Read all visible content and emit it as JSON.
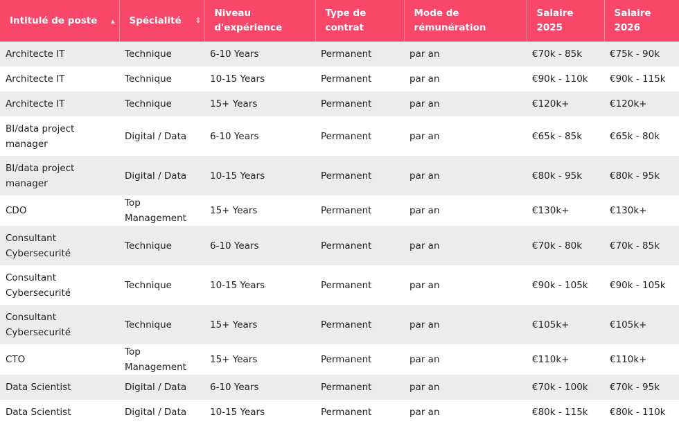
{
  "table": {
    "columns": [
      "Intitulé de poste",
      "Spécialité",
      "Niveau d'expérience",
      "Type de contrat",
      "Mode de rémunération",
      "Salaire 2025",
      "Salaire 2026"
    ],
    "rows": [
      [
        "Architecte IT",
        "Technique",
        "6-10 Years",
        "Permanent",
        "par an",
        "€70k - 85k",
        "€75k - 90k"
      ],
      [
        "Architecte IT",
        "Technique",
        "10-15 Years",
        "Permanent",
        "par an",
        "€90k - 110k",
        "€90k - 115k"
      ],
      [
        "Architecte IT",
        "Technique",
        "15+ Years",
        "Permanent",
        "par an",
        "€120k+",
        "€120k+"
      ],
      [
        "BI/data project manager",
        "Digital / Data",
        "6-10 Years",
        "Permanent",
        "par an",
        "€65k - 85k",
        "€65k - 80k"
      ],
      [
        "BI/data project manager",
        "Digital / Data",
        "10-15 Years",
        "Permanent",
        "par an",
        "€80k - 95k",
        "€80k - 95k"
      ],
      [
        "CDO",
        "Top Management",
        "15+ Years",
        "Permanent",
        "par an",
        "€130k+",
        "€130k+"
      ],
      [
        "Consultant Cybersecurité",
        "Technique",
        "6-10 Years",
        "Permanent",
        "par an",
        "€70k - 80k",
        "€70k - 85k"
      ],
      [
        "Consultant Cybersecurité",
        "Technique",
        "10-15 Years",
        "Permanent",
        "par an",
        "€90k - 105k",
        "€90k - 105k"
      ],
      [
        "Consultant Cybersecurité",
        "Technique",
        "15+ Years",
        "Permanent",
        "par an",
        "€105k+",
        "€105k+"
      ],
      [
        "CTO",
        "Top Management",
        "15+ Years",
        "Permanent",
        "par an",
        "€110k+",
        "€110k+"
      ],
      [
        "Data Scientist",
        "Digital / Data",
        "6-10 Years",
        "Permanent",
        "par an",
        "€70k - 100k",
        "€70k - 95k"
      ],
      [
        "Data Scientist",
        "Digital / Data",
        "10-15 Years",
        "Permanent",
        "par an",
        "€80k - 115k",
        "€80k - 110k"
      ]
    ]
  }
}
